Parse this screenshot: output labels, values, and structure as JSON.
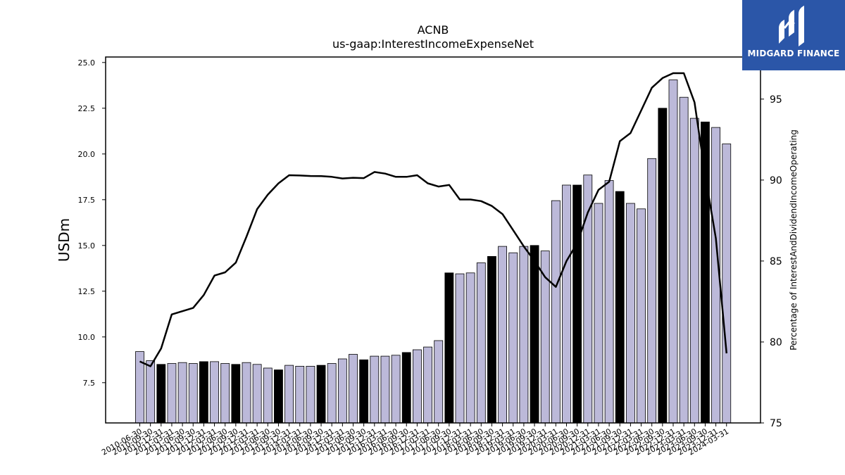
{
  "brand": {
    "name": "MIDGARD FINANCE",
    "bg_color": "#2b56a8",
    "text_color": "#ffffff"
  },
  "chart_data": {
    "type": "bar",
    "title": "ACNB",
    "subtitle": "us-gaap:InterestIncomeExpenseNet",
    "ylabel": "USDm",
    "y2label": "Percentage of InterestAndDividendIncomeOperating",
    "ylim": [
      5.3,
      25.3
    ],
    "y2lim": [
      75,
      97.6
    ],
    "yticks": [
      7.5,
      10.0,
      12.5,
      15.0,
      17.5,
      20.0,
      22.5,
      25.0
    ],
    "y2ticks": [
      75,
      80,
      85,
      90,
      95
    ],
    "bar_color": "#bcb9d9",
    "highlight_color": "#000000",
    "line_color": "#000000",
    "categories": [
      "2010-06-30",
      "2010-09-30",
      "2010-12-31",
      "2011-03-31",
      "2011-06-30",
      "2011-09-30",
      "2011-12-31",
      "2012-03-31",
      "2012-06-30",
      "2012-09-30",
      "2012-12-31",
      "2013-03-31",
      "2013-06-30",
      "2013-09-30",
      "2013-12-31",
      "2014-03-31",
      "2014-06-30",
      "2014-09-30",
      "2014-12-31",
      "2015-03-31",
      "2015-06-30",
      "2015-09-30",
      "2015-12-31",
      "2016-03-31",
      "2016-06-30",
      "2016-09-30",
      "2016-12-31",
      "2017-03-31",
      "2017-06-30",
      "2017-09-30",
      "2017-12-31",
      "2018-03-31",
      "2018-06-30",
      "2018-09-30",
      "2018-12-31",
      "2019-03-31",
      "2019-06-30",
      "2019-09-30",
      "2019-12-31",
      "2020-03-31",
      "2020-06-30",
      "2020-09-30",
      "2020-12-31",
      "2021-03-31",
      "2021-06-30",
      "2021-09-30",
      "2021-12-31",
      "2022-03-31",
      "2022-06-30",
      "2022-09-30",
      "2022-12-31",
      "2023-03-31",
      "2023-06-30",
      "2023-09-30",
      "2023-12-31",
      "2024-03-31"
    ],
    "series": [
      {
        "kind": "bar",
        "axis": "left",
        "values": [
          9.2,
          8.7,
          8.5,
          8.55,
          8.6,
          8.55,
          8.65,
          8.65,
          8.55,
          8.5,
          8.6,
          8.5,
          8.3,
          8.2,
          8.45,
          8.4,
          8.4,
          8.45,
          8.55,
          8.8,
          9.05,
          8.75,
          8.95,
          8.95,
          9.0,
          9.15,
          9.3,
          9.45,
          9.8,
          13.5,
          13.45,
          13.5,
          14.05,
          14.4,
          14.95,
          14.6,
          14.95,
          15.0,
          14.7,
          17.45,
          18.3,
          18.3,
          18.85,
          17.3,
          18.55,
          17.95,
          17.3,
          17.0,
          19.75,
          22.5,
          24.05,
          23.1,
          21.95,
          21.75,
          21.45,
          20.55
        ],
        "highlight": [
          false,
          false,
          true,
          false,
          false,
          false,
          true,
          false,
          false,
          true,
          false,
          false,
          false,
          true,
          false,
          false,
          false,
          true,
          false,
          false,
          false,
          true,
          false,
          false,
          false,
          true,
          false,
          false,
          false,
          true,
          false,
          false,
          false,
          true,
          false,
          false,
          false,
          true,
          false,
          false,
          false,
          true,
          false,
          false,
          false,
          true,
          false,
          false,
          false,
          true,
          false,
          false,
          false,
          true,
          false,
          false
        ]
      },
      {
        "kind": "line",
        "axis": "right",
        "values": [
          78.8,
          78.5,
          79.6,
          81.7,
          81.9,
          82.1,
          82.9,
          84.1,
          84.3,
          84.9,
          86.5,
          88.2,
          89.1,
          89.8,
          90.3,
          90.28,
          90.25,
          90.24,
          90.2,
          90.1,
          90.14,
          90.12,
          90.5,
          90.4,
          90.2,
          90.2,
          90.3,
          89.8,
          89.6,
          89.7,
          88.8,
          88.8,
          88.7,
          88.4,
          87.9,
          86.9,
          85.9,
          85.0,
          84.0,
          83.4,
          85.0,
          86.1,
          88.0,
          89.4,
          89.9,
          92.4,
          92.9,
          94.3,
          95.7,
          96.3,
          96.6,
          96.6,
          94.8,
          90.3,
          86.4,
          79.3
        ]
      }
    ],
    "legend": "none",
    "grid": false
  }
}
